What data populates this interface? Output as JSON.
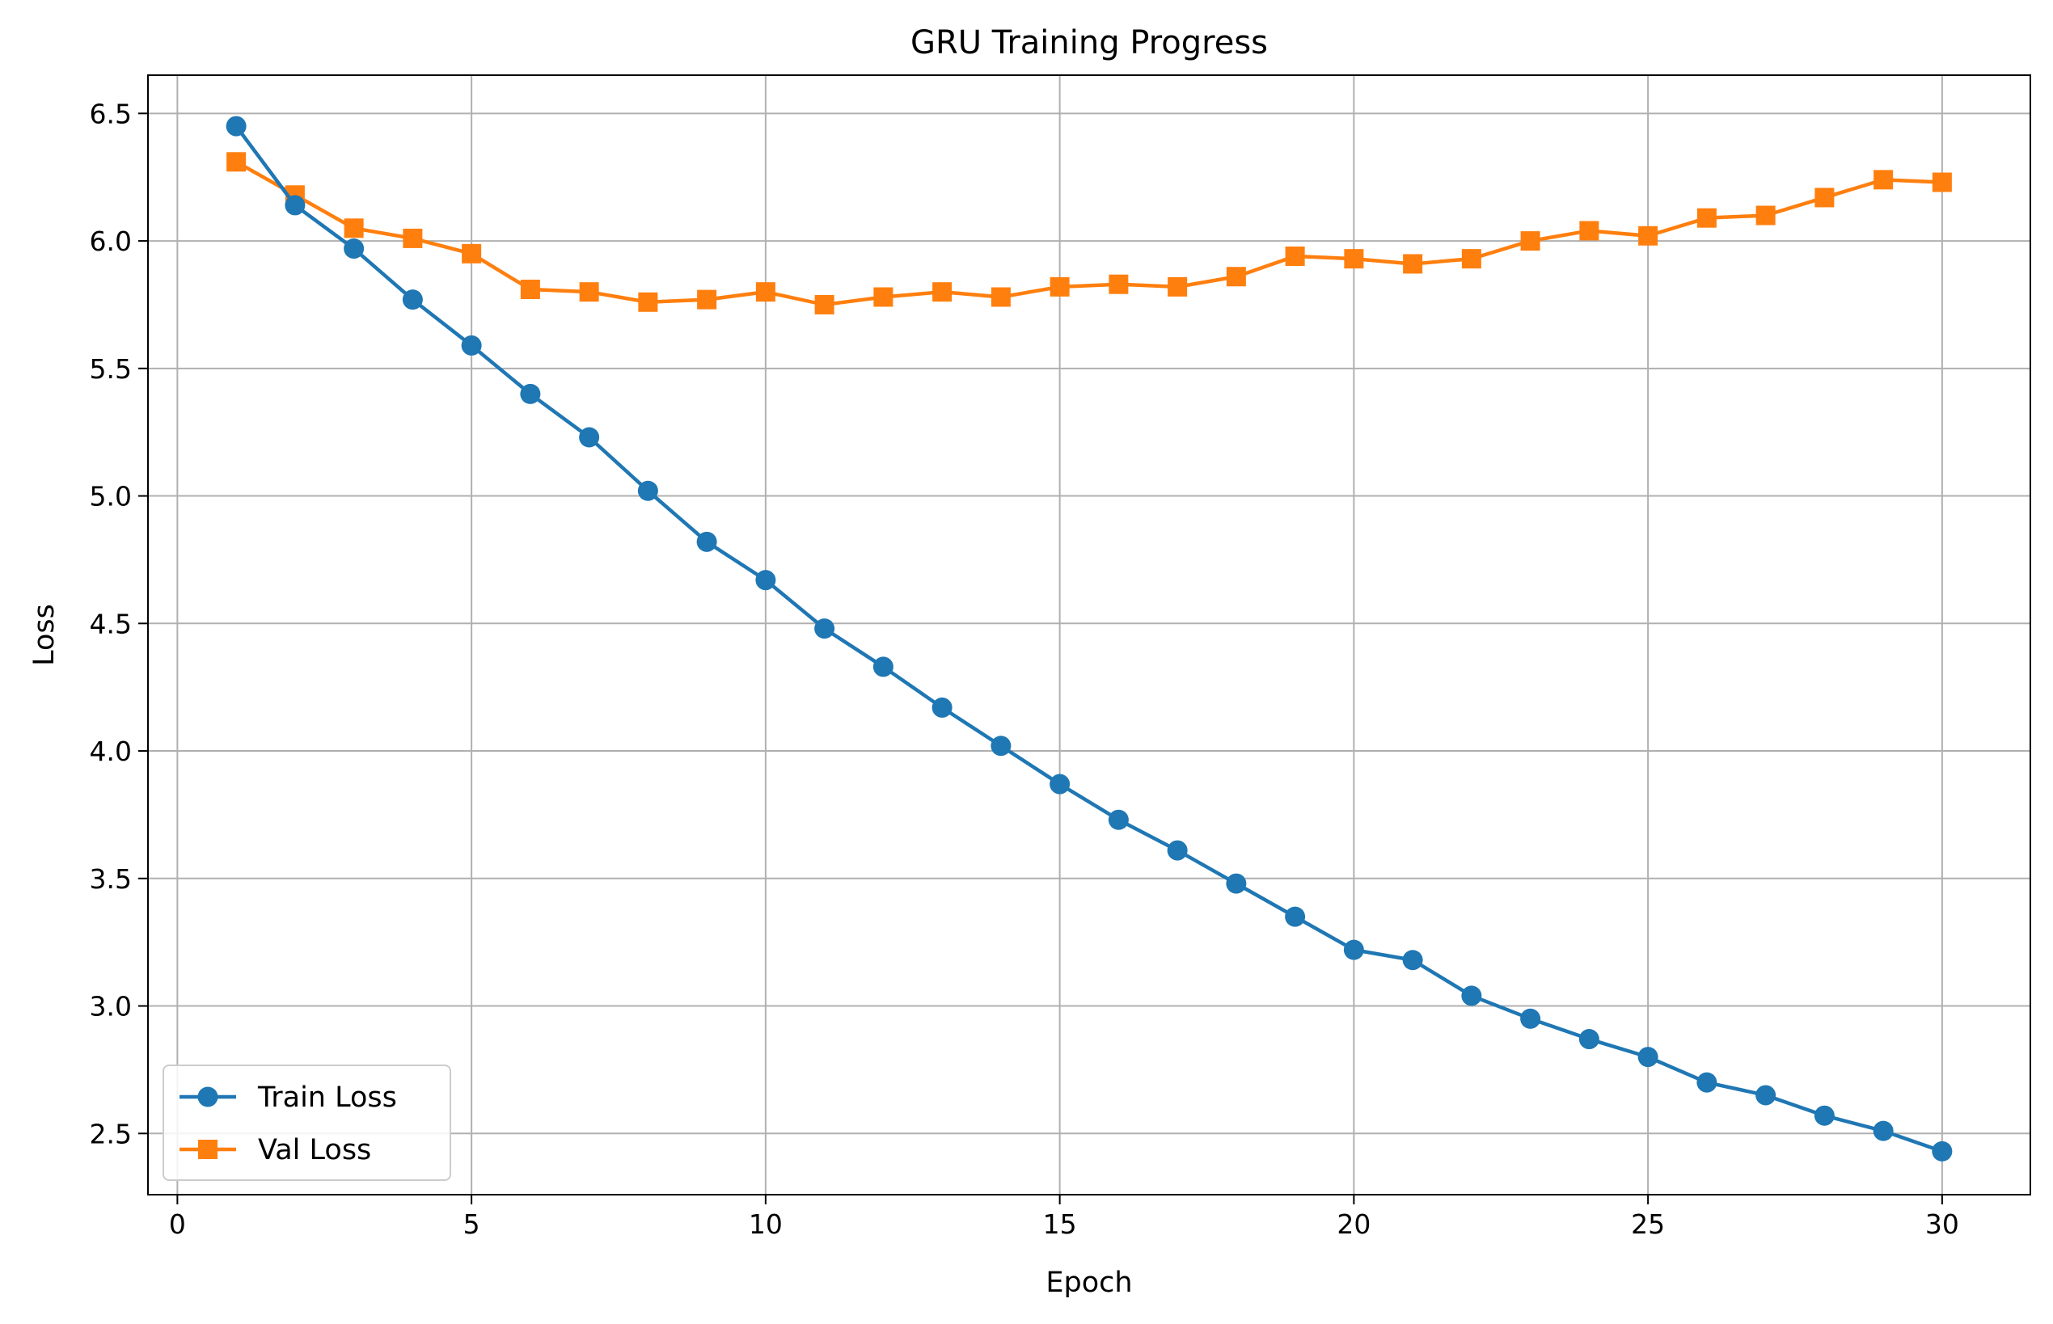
{
  "chart_data": {
    "type": "line",
    "title": "GRU Training Progress",
    "xlabel": "Epoch",
    "ylabel": "Loss",
    "xlim": [
      -0.5,
      31.5
    ],
    "ylim": [
      2.26,
      6.65
    ],
    "xticks": [
      0,
      5,
      10,
      15,
      20,
      25,
      30
    ],
    "xtick_labels": [
      "0",
      "5",
      "10",
      "15",
      "20",
      "25",
      "30"
    ],
    "yticks": [
      2.5,
      3.0,
      3.5,
      4.0,
      4.5,
      5.0,
      5.5,
      6.0,
      6.5
    ],
    "ytick_labels": [
      "2.5",
      "3.0",
      "3.5",
      "4.0",
      "4.5",
      "5.0",
      "5.5",
      "6.0",
      "6.5"
    ],
    "grid": true,
    "legend_position": "lower-left",
    "x": [
      1,
      2,
      3,
      4,
      5,
      6,
      7,
      8,
      9,
      10,
      11,
      12,
      13,
      14,
      15,
      16,
      17,
      18,
      19,
      20,
      21,
      22,
      23,
      24,
      25,
      26,
      27,
      28,
      29,
      30
    ],
    "series": [
      {
        "name": "Train Loss",
        "color": "#1f77b4",
        "marker": "circle",
        "values": [
          6.45,
          6.14,
          5.97,
          5.77,
          5.59,
          5.4,
          5.23,
          5.02,
          4.82,
          4.67,
          4.48,
          4.33,
          4.17,
          4.02,
          3.87,
          3.73,
          3.61,
          3.48,
          3.35,
          3.22,
          3.18,
          3.04,
          2.95,
          2.87,
          2.8,
          2.7,
          2.65,
          2.57,
          2.51,
          2.43
        ]
      },
      {
        "name": "Val Loss",
        "color": "#ff7f0e",
        "marker": "square",
        "values": [
          6.31,
          6.18,
          6.05,
          6.01,
          5.95,
          5.81,
          5.8,
          5.76,
          5.77,
          5.8,
          5.75,
          5.78,
          5.8,
          5.78,
          5.82,
          5.83,
          5.82,
          5.86,
          5.94,
          5.93,
          5.91,
          5.93,
          6.0,
          6.04,
          6.02,
          6.09,
          6.1,
          6.17,
          6.24,
          6.23
        ]
      }
    ]
  }
}
